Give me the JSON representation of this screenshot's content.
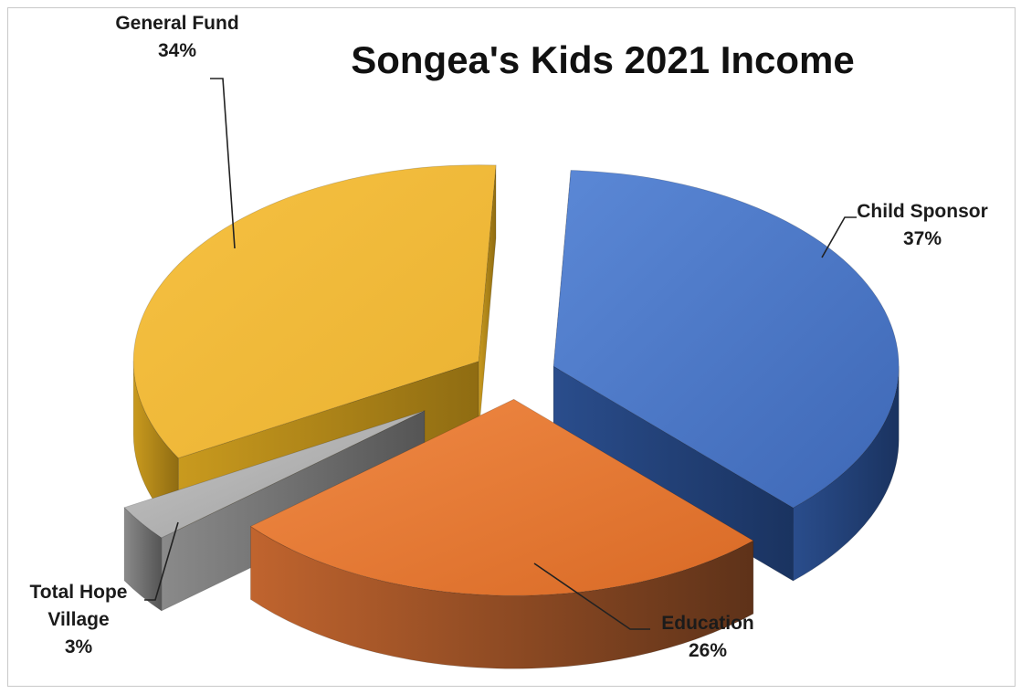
{
  "chart_data": {
    "type": "pie",
    "title": "Songea's Kids 2021 Income",
    "categories": [
      "Child Sponsor",
      "Education",
      "Total Hope Village",
      "General Fund"
    ],
    "values": [
      37,
      26,
      3,
      34
    ],
    "value_labels": [
      "37%",
      "26%",
      "3%",
      "34%"
    ],
    "category_lines": [
      [
        "Child Sponsor"
      ],
      [
        "Education"
      ],
      [
        "Total Hope",
        "Village"
      ],
      [
        "General Fund"
      ]
    ],
    "colors": [
      "#4472C4",
      "#ED7D31",
      "#A5A5A5",
      "#FFC000"
    ],
    "style": "3d-exploded",
    "legend": "none",
    "data_labels": "outside-with-leader-lines"
  }
}
